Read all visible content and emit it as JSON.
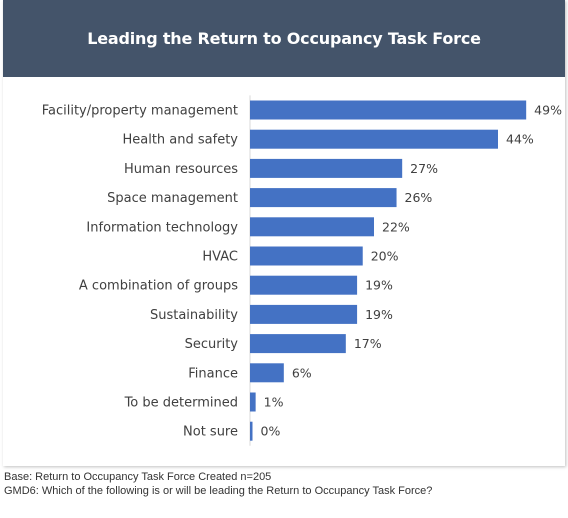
{
  "header": {
    "title": "Leading the Return to Occupancy Task Force"
  },
  "chart_data": {
    "type": "bar",
    "orientation": "horizontal",
    "title": "",
    "categories": [
      "Facility/property management",
      "Health and safety",
      "Human resources",
      "Space management",
      "Information technology",
      "HVAC",
      "A combination of groups",
      "Sustainability",
      "Security",
      "Finance",
      "To be determined",
      "Not sure"
    ],
    "values": [
      49,
      44,
      27,
      26,
      22,
      20,
      19,
      19,
      17,
      6,
      1,
      0
    ],
    "value_labels": [
      "49%",
      "44%",
      "27%",
      "26%",
      "22%",
      "20%",
      "19%",
      "19%",
      "17%",
      "6%",
      "1%",
      "0%"
    ],
    "unit": "%",
    "xlim": [
      0,
      55
    ],
    "grid": false,
    "bar_color": "#4472c4"
  },
  "footer": {
    "base": "Base: Return to Occupancy Task Force Created n=205",
    "question": "GMD6: Which of the following is or will be leading the Return to Occupancy Task Force?"
  }
}
